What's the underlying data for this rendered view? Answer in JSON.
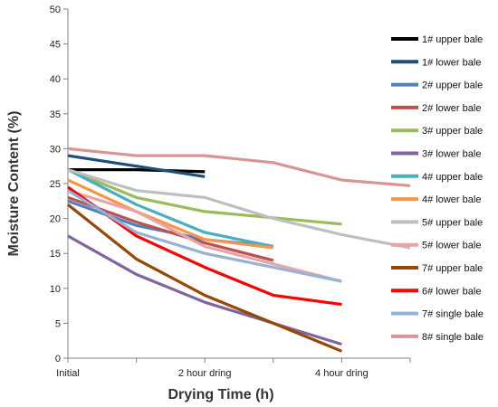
{
  "chart_data": {
    "type": "line",
    "categories": [
      "Initial",
      "",
      "2 hour dring",
      "",
      "4 hour dring",
      ""
    ],
    "xlabel": "Drying Time (h)",
    "ylabel": "Moisture Content (%)",
    "ylim": [
      0,
      50
    ],
    "yticks": [
      0,
      5,
      10,
      15,
      20,
      25,
      30,
      35,
      40,
      45,
      50
    ],
    "grid": false,
    "legend_position": "right",
    "series": [
      {
        "name": "1# upper bale",
        "color": "#000000",
        "values": [
          27,
          27,
          26.7,
          null,
          null,
          null
        ]
      },
      {
        "name": "1# lower bale",
        "color": "#1f4e79",
        "values": [
          29,
          27.5,
          26,
          null,
          null,
          null
        ]
      },
      {
        "name": "2# upper bale",
        "color": "#4f81bd",
        "values": [
          22.5,
          19,
          17,
          16,
          null,
          null
        ]
      },
      {
        "name": "2# lower bale",
        "color": "#c0504d",
        "values": [
          23,
          19.5,
          16.5,
          14,
          null,
          null
        ]
      },
      {
        "name": "3# upper bale",
        "color": "#9bbb59",
        "values": [
          27,
          23,
          21,
          20.1,
          19.2,
          null
        ]
      },
      {
        "name": "3# lower bale",
        "color": "#8064a2",
        "values": [
          17.5,
          12,
          8,
          5,
          2,
          null
        ]
      },
      {
        "name": "4# upper bale",
        "color": "#4bacc6",
        "values": [
          27,
          22,
          18,
          16,
          null,
          null
        ]
      },
      {
        "name": "4# lower bale",
        "color": "#f79646",
        "values": [
          25.5,
          21,
          17,
          15.8,
          null,
          null
        ]
      },
      {
        "name": "5# upper bale",
        "color": "#bfbfbf",
        "values": [
          27,
          24,
          23,
          20,
          17.7,
          15.8
        ]
      },
      {
        "name": "5# lower bale",
        "color": "#e6a6a6",
        "values": [
          24,
          21,
          16,
          13.5,
          11,
          null
        ]
      },
      {
        "name": "7# upper bale",
        "color": "#974806",
        "values": [
          22,
          14.2,
          9,
          5,
          1,
          null
        ]
      },
      {
        "name": "6# lower bale",
        "color": "#ff0000",
        "values": [
          24.5,
          17.5,
          13,
          9,
          7.7,
          null
        ]
      },
      {
        "name": "7# single bale",
        "color": "#95b3d7",
        "values": [
          24,
          18,
          15,
          13,
          11,
          null
        ]
      },
      {
        "name": "8# single bale",
        "color": "#d99594",
        "values": [
          30,
          29,
          29,
          28,
          25.5,
          24.7
        ]
      }
    ]
  }
}
